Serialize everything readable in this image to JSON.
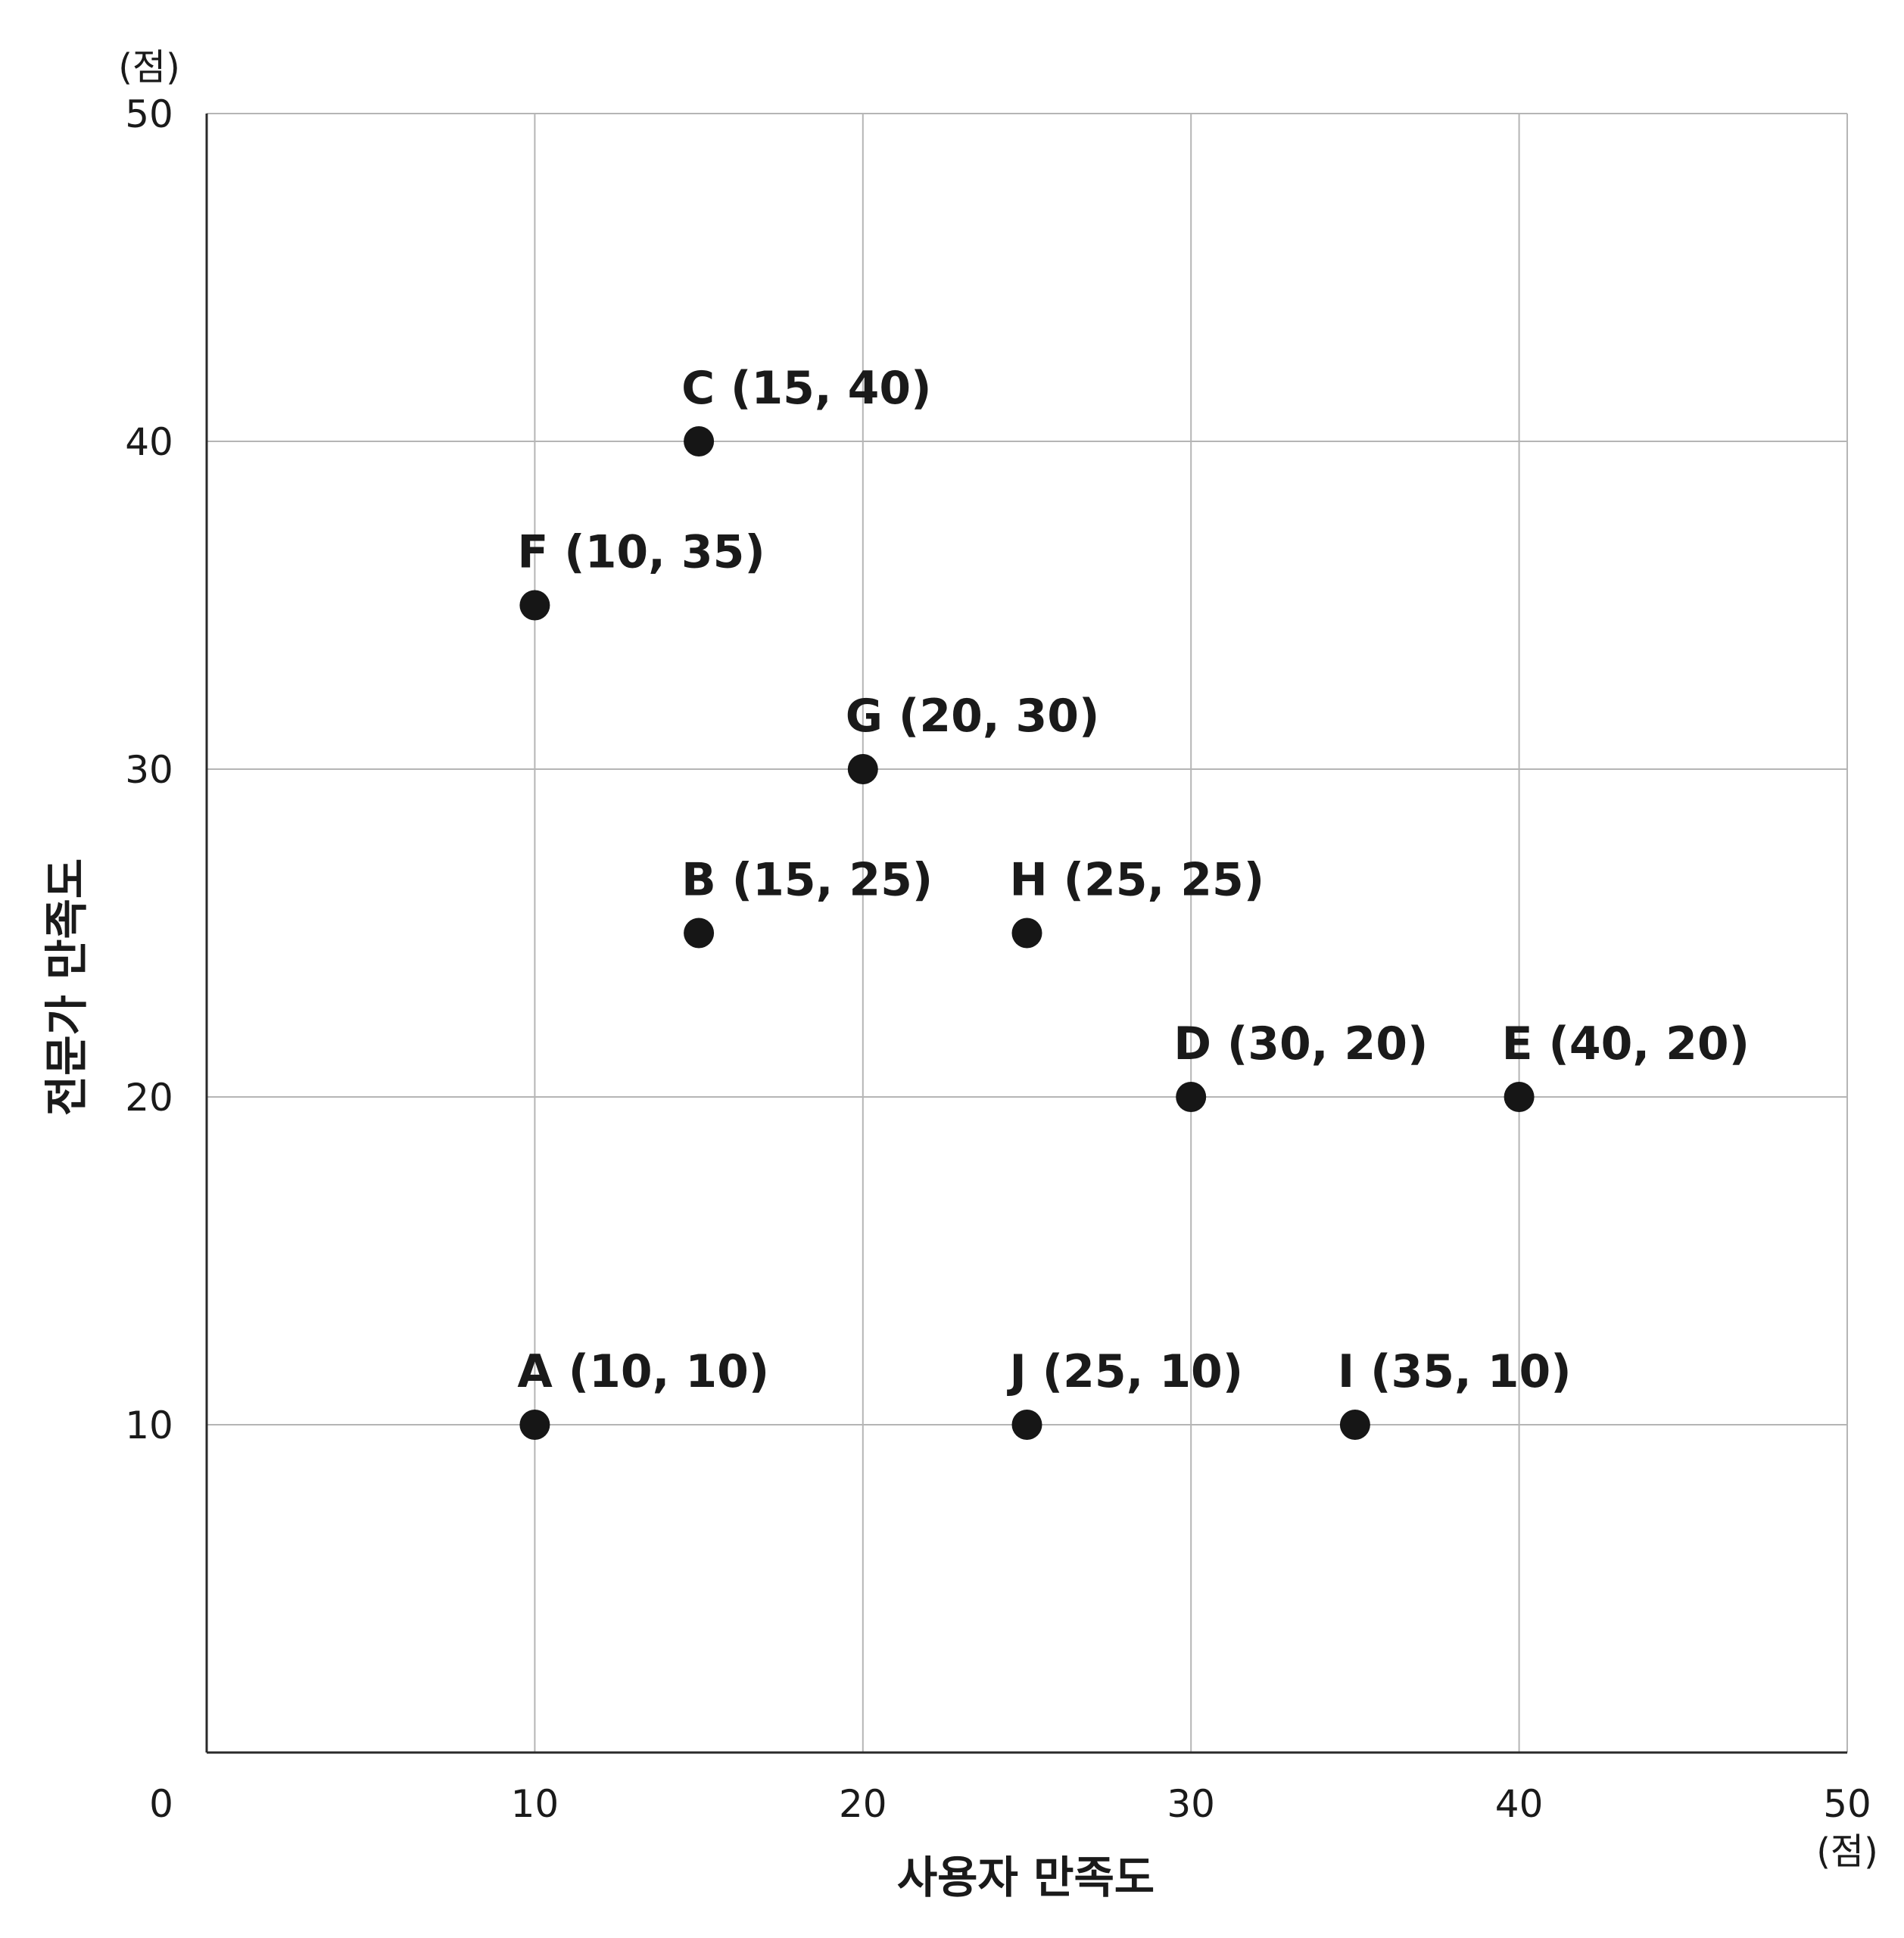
{
  "chart_data": {
    "type": "scatter",
    "xlabel": "사용자 만족도",
    "ylabel": "전문가 만족도",
    "x_unit": "(점)",
    "y_unit": "(점)",
    "xlim": [
      0,
      50
    ],
    "ylim": [
      0,
      50
    ],
    "x_ticks": [
      0,
      10,
      20,
      30,
      40,
      50
    ],
    "y_ticks": [
      10,
      20,
      30,
      40,
      50
    ],
    "grid": true,
    "points": [
      {
        "label": "A (10, 10)",
        "x": 10,
        "y": 10
      },
      {
        "label": "B (15, 25)",
        "x": 15,
        "y": 25
      },
      {
        "label": "C (15, 40)",
        "x": 15,
        "y": 40
      },
      {
        "label": "D (30, 20)",
        "x": 30,
        "y": 20
      },
      {
        "label": "E (40, 20)",
        "x": 40,
        "y": 20
      },
      {
        "label": "F (10, 35)",
        "x": 10,
        "y": 35
      },
      {
        "label": "G (20, 30)",
        "x": 20,
        "y": 30
      },
      {
        "label": "H (25, 25)",
        "x": 25,
        "y": 25
      },
      {
        "label": "I (35, 10)",
        "x": 35,
        "y": 10
      },
      {
        "label": "J (25, 10)",
        "x": 25,
        "y": 10
      }
    ],
    "colors": {
      "point": "#161616",
      "grid": "#b5b5b5",
      "axis": "#2a2a2a",
      "text": "#1a1a1a"
    }
  }
}
